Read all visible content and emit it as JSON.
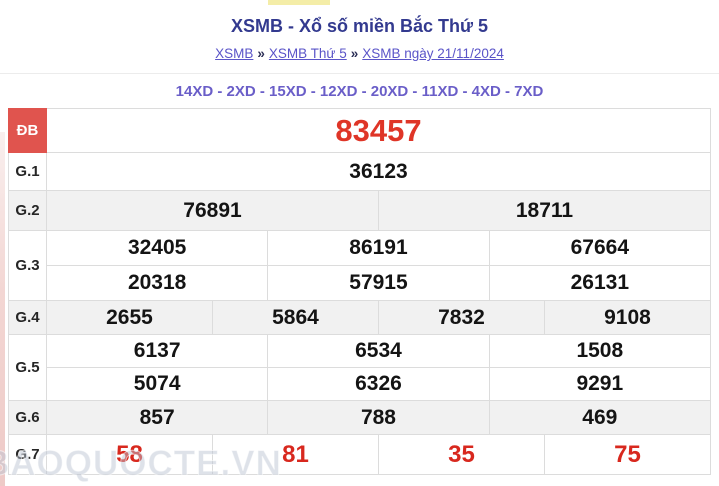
{
  "page": {
    "title": "XSMB - Xổ số miền Bắc Thứ 5",
    "breadcrumb": {
      "separator": "»",
      "items": [
        "XSMB",
        "XSMB Thứ 5",
        "XSMB ngày 21/11/2024"
      ]
    },
    "head_numbers": "14XD - 2XD - 15XD - 12XD - 20XD - 11XD - 4XD - 7XD",
    "watermark": "BAOQUOCTE.VN"
  },
  "colors": {
    "title_navy": "#333a8f",
    "link_purple": "#5a54c8",
    "xd_purple": "#6a5ec8",
    "special_cell_red": "#e0544e",
    "special_number_red": "#df3527",
    "g7_number_red": "#d8281e",
    "alt_row_gray": "#f1f1f1",
    "border_gray": "#dcdcdc",
    "top_strip_yellow": "#f4eda8"
  },
  "results_table": {
    "rows": [
      {
        "label": "ĐB",
        "values": [
          "83457"
        ]
      },
      {
        "label": "G.1",
        "values": [
          "36123"
        ]
      },
      {
        "label": "G.2",
        "values": [
          "76891",
          "18711"
        ]
      },
      {
        "label": "G.3",
        "values": [
          "32405",
          "86191",
          "67664",
          "20318",
          "57915",
          "26131"
        ]
      },
      {
        "label": "G.4",
        "values": [
          "2655",
          "5864",
          "7832",
          "9108"
        ]
      },
      {
        "label": "G.5",
        "values": [
          "6137",
          "6534",
          "1508",
          "5074",
          "6326",
          "9291"
        ]
      },
      {
        "label": "G.6",
        "values": [
          "857",
          "788",
          "469"
        ]
      },
      {
        "label": "G.7",
        "values": [
          "58",
          "81",
          "35",
          "75"
        ]
      }
    ]
  }
}
